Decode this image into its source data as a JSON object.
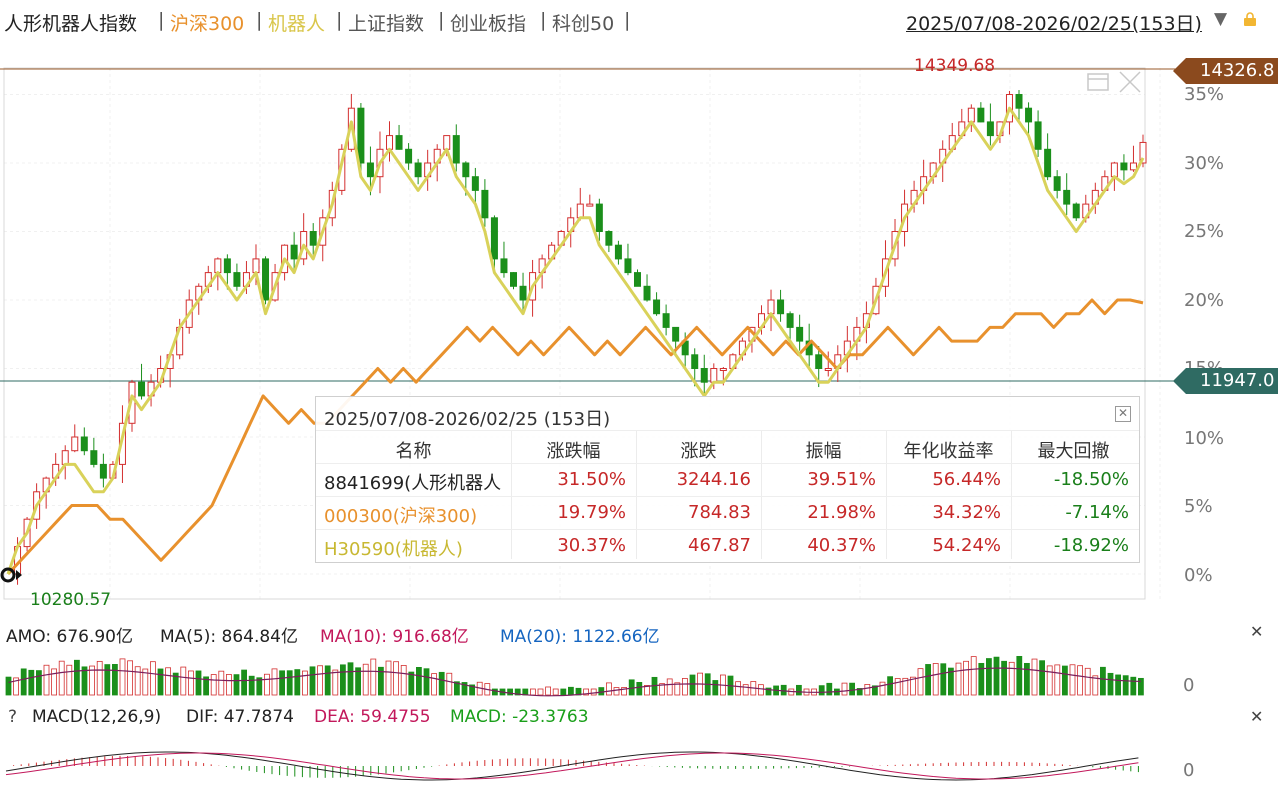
{
  "header": {
    "tabs": [
      {
        "label": "人形机器人指数",
        "color": "#222222"
      },
      {
        "label": "沪深300",
        "color": "#e8912d"
      },
      {
        "label": "机器人",
        "color": "#d9c64a"
      },
      {
        "label": "上证指数",
        "color": "#555555"
      },
      {
        "label": "创业板指",
        "color": "#555555"
      },
      {
        "label": "科创50",
        "color": "#555555"
      }
    ],
    "separator": "|",
    "range": "2025/07/08-2026/02/25(153日)",
    "range_arrow": "▼"
  },
  "price_tags": {
    "high": "14326.8",
    "last": "11947.0"
  },
  "extremes": {
    "max": "14349.68",
    "min": "10280.57"
  },
  "chart_data": {
    "type": "line",
    "title": "",
    "y_axis_ticks": [
      "35%",
      "30%",
      "25%",
      "20%",
      "15%",
      "10%",
      "5%",
      "0%"
    ],
    "ylim": [
      -2,
      37
    ],
    "base_value": 10280.57,
    "series": [
      {
        "name": "人形机器人指数",
        "style": "candlestick",
        "colors": {
          "up": "#d32f2f",
          "down": "#1b8f1b"
        },
        "values": [
          0,
          2,
          4,
          6,
          7,
          8,
          9,
          10,
          9,
          8,
          7,
          8,
          11,
          14,
          13,
          14,
          15,
          16,
          18,
          20,
          21,
          22,
          23,
          22,
          21,
          22,
          23,
          20,
          22,
          24,
          23,
          25,
          24,
          26,
          28,
          31,
          34,
          30,
          29,
          31,
          32,
          31,
          30,
          29,
          30,
          31,
          32,
          30,
          29,
          28,
          26,
          23,
          22,
          21,
          20,
          22,
          23,
          24,
          25,
          26,
          27,
          27,
          25,
          24,
          23,
          22,
          21,
          20,
          19,
          18,
          17,
          16,
          15,
          14,
          15,
          15,
          16,
          17,
          18,
          19,
          20,
          19,
          18,
          17,
          16,
          15,
          15,
          16,
          17,
          18,
          19,
          21,
          23,
          25,
          27,
          28,
          29,
          30,
          31,
          32,
          33,
          34,
          33,
          32,
          33,
          35,
          34,
          33,
          31,
          29,
          28,
          27,
          26,
          27,
          28,
          29,
          30,
          29.5,
          30,
          31.5
        ]
      },
      {
        "name": "沪深300",
        "color": "#e8912d",
        "values": [
          0,
          1,
          2,
          3,
          4,
          5,
          5,
          5,
          4,
          4,
          3,
          2,
          1,
          2,
          3,
          4,
          5,
          7,
          9,
          11,
          13,
          12,
          11,
          12,
          11,
          11,
          12,
          13,
          14,
          15,
          14,
          15,
          14,
          15,
          16,
          17,
          18,
          17,
          18,
          17,
          16,
          17,
          16,
          17,
          18,
          17,
          16,
          17,
          16,
          17,
          18,
          17,
          16,
          17,
          18,
          17,
          16,
          17,
          18,
          17,
          16,
          17,
          16,
          17,
          16,
          15,
          16,
          16,
          17,
          18,
          17,
          16,
          17,
          18,
          17,
          17,
          17,
          18,
          18,
          19,
          19,
          19,
          18,
          19,
          19,
          20,
          19,
          20,
          20,
          19.79
        ]
      },
      {
        "name": "机器人",
        "color": "#d9d25a",
        "values": [
          0,
          2,
          3,
          5,
          6,
          7,
          8,
          8,
          7,
          6,
          6,
          7,
          10,
          13,
          12,
          13,
          14,
          16,
          18,
          19,
          20,
          21,
          22,
          21,
          20,
          21,
          22,
          19,
          21,
          23,
          22,
          24,
          23,
          25,
          27,
          30,
          33,
          29,
          28,
          30,
          31,
          30,
          29,
          28,
          29,
          30,
          31,
          29,
          28,
          27,
          25,
          22,
          21,
          20,
          19,
          21,
          22,
          23,
          24,
          25,
          26,
          26,
          24,
          23,
          22,
          21,
          20,
          19,
          18,
          17,
          16,
          15,
          14,
          13,
          14,
          14,
          15,
          16,
          17,
          18,
          19,
          18,
          17,
          16,
          15,
          14,
          14,
          15,
          16,
          17,
          18,
          20,
          22,
          24,
          26,
          27,
          28,
          29,
          30,
          31,
          32,
          33,
          32,
          31,
          32,
          34,
          33,
          32,
          30,
          28,
          27,
          26,
          25,
          26,
          27,
          28,
          29,
          28.5,
          29,
          30.37
        ]
      }
    ]
  },
  "summary": {
    "title": "2025/07/08-2026/02/25 (153日)",
    "columns": [
      "名称",
      "涨跌幅",
      "涨跌",
      "振幅",
      "年化收益率",
      "最大回撤"
    ],
    "rows": [
      {
        "name": "8841699(人形机器人",
        "name_color": "#222222",
        "change_pct": "31.50%",
        "change": "3244.16",
        "amplitude": "39.51%",
        "annualized": "56.44%",
        "max_drawdown": "-18.50%"
      },
      {
        "name": "000300(沪深300)",
        "name_color": "#e8912d",
        "change_pct": "19.79%",
        "change": "784.83",
        "amplitude": "21.98%",
        "annualized": "34.32%",
        "max_drawdown": "-7.14%"
      },
      {
        "name": "H30590(机器人)",
        "name_color": "#c8b832",
        "change_pct": "30.37%",
        "change": "467.87",
        "amplitude": "40.37%",
        "annualized": "54.24%",
        "max_drawdown": "-18.92%"
      }
    ]
  },
  "amo": {
    "label": "AMO: 676.90亿",
    "ma5": "MA(5): 864.84亿",
    "ma10": "MA(10): 916.68亿",
    "ma20": "MA(20): 1122.66亿",
    "zero": "0"
  },
  "macd": {
    "help": "?",
    "label": "MACD(12,26,9)",
    "dif": "DIF: 47.7874",
    "dea": "DEA: 59.4755",
    "macd": "MACD: -23.3763",
    "zero": "0"
  },
  "close_glyph": "✕",
  "colors": {
    "up": "#d32f2f",
    "down": "#1b8f1b",
    "hs300": "#e8912d",
    "robot": "#d9d25a",
    "ma10": "#c2185b",
    "ma20": "#1565c0"
  }
}
